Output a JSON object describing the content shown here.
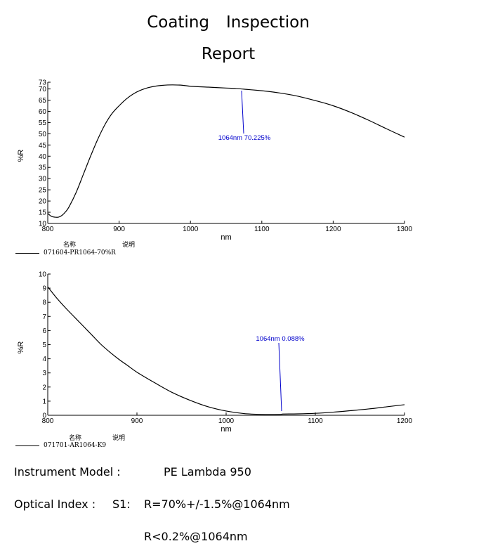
{
  "header": {
    "title_word1": "Coating",
    "title_word2": "Inspection",
    "title_line2": "Report"
  },
  "legend_header": {
    "name": "名称",
    "desc": "说明"
  },
  "chart_data": [
    {
      "type": "line",
      "xlabel": "nm",
      "ylabel": "%R",
      "xlim": [
        800,
        1300
      ],
      "ylim": [
        10,
        73
      ],
      "xticks": [
        800,
        900,
        1000,
        1100,
        1200,
        1300
      ],
      "yticks": [
        10,
        15,
        20,
        25,
        30,
        35,
        40,
        45,
        50,
        55,
        60,
        65,
        70,
        73
      ],
      "grid": false,
      "legend_position": "bottom-left",
      "annotation": {
        "x": 1064,
        "label": "1064nm  70.225%"
      },
      "series": [
        {
          "name": "071604-PR1064-70%R",
          "color": "#000000",
          "x": [
            800,
            805,
            810,
            815,
            820,
            825,
            830,
            840,
            850,
            860,
            870,
            880,
            890,
            900,
            910,
            920,
            930,
            940,
            950,
            960,
            975,
            990,
            1000,
            1025,
            1050,
            1064,
            1075,
            1100,
            1125,
            1150,
            1175,
            1200,
            1225,
            1250,
            1275,
            1300
          ],
          "y": [
            14.5,
            13.2,
            12.8,
            12.8,
            13.6,
            15.2,
            17.5,
            24,
            32,
            40,
            47.5,
            54,
            59,
            62.5,
            65.5,
            67.8,
            69.4,
            70.5,
            71.2,
            71.6,
            71.8,
            71.6,
            71.2,
            70.8,
            70.4,
            70.2,
            69.9,
            69.2,
            68.2,
            66.8,
            64.8,
            62.5,
            59.5,
            56,
            52.2,
            48.5
          ]
        }
      ]
    },
    {
      "type": "line",
      "xlabel": "nm",
      "ylabel": "%R",
      "xlim": [
        800,
        1200
      ],
      "ylim": [
        0,
        10
      ],
      "xticks": [
        800,
        900,
        1000,
        1100,
        1200
      ],
      "yticks": [
        0,
        1,
        2,
        3,
        4,
        5,
        6,
        7,
        8,
        9,
        10
      ],
      "grid": false,
      "legend_position": "bottom-left",
      "annotation": {
        "x": 1064,
        "label": "1064nm   0.088%"
      },
      "series": [
        {
          "name": "071701-AR1064-K9",
          "color": "#000000",
          "x": [
            800,
            810,
            820,
            830,
            840,
            850,
            860,
            870,
            880,
            890,
            900,
            920,
            940,
            960,
            980,
            1000,
            1020,
            1040,
            1060,
            1064,
            1080,
            1100,
            1120,
            1140,
            1160,
            1180,
            1200
          ],
          "y": [
            9.1,
            8.3,
            7.6,
            6.95,
            6.3,
            5.65,
            5.0,
            4.45,
            3.95,
            3.5,
            3.05,
            2.3,
            1.6,
            1.05,
            0.6,
            0.3,
            0.12,
            0.06,
            0.06,
            0.088,
            0.1,
            0.14,
            0.22,
            0.33,
            0.45,
            0.6,
            0.75
          ]
        }
      ]
    }
  ],
  "info": {
    "instrument_label": "Instrument Model :",
    "instrument_value": "PE Lambda 950",
    "optical_label": "Optical Index :",
    "s1_label": "S1:",
    "s1_value": "R=70%+/-1.5%@1064nm",
    "s2_value": "R<0.2%@1064nm"
  }
}
